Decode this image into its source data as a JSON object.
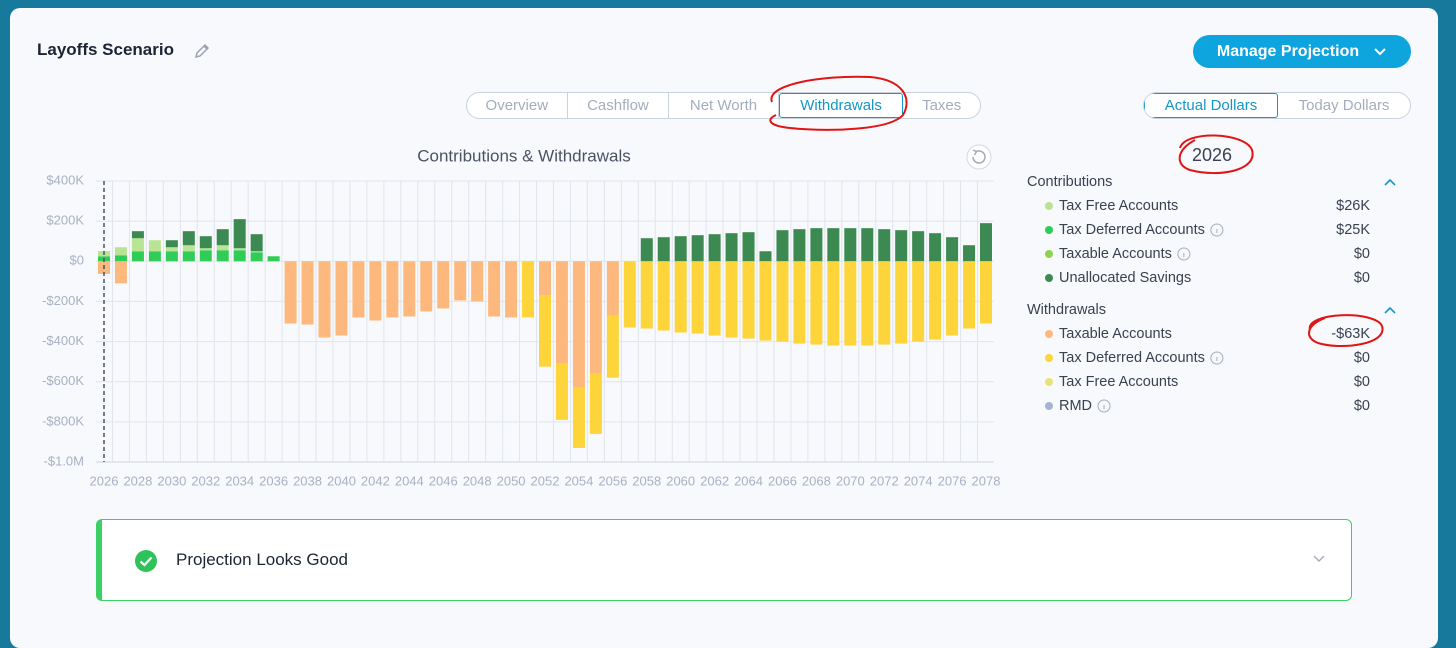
{
  "header": {
    "title": "Layoffs Scenario",
    "button": "Manage Projection"
  },
  "tabs": [
    "Overview",
    "Cashflow",
    "Net Worth",
    "Withdrawals",
    "Taxes"
  ],
  "toggle": [
    "Actual Dollars",
    "Today Dollars"
  ],
  "panel": {
    "year": "2026",
    "contributions": {
      "title": "Contributions",
      "values": [
        "$26K",
        "$25K",
        "$0",
        "$0"
      ]
    },
    "withdrawals": {
      "title": "Withdrawals",
      "values": [
        "-$63K",
        "$0",
        "$0",
        "$0"
      ]
    }
  },
  "status": "Projection Looks Good",
  "chart_data": {
    "type": "bar",
    "title": "Contributions & Withdrawals",
    "categories": [
      "2026",
      null,
      "2028",
      null,
      "2030",
      null,
      "2032",
      null,
      "2034",
      null,
      "2036",
      null,
      "2038",
      null,
      "2040",
      null,
      "2042",
      null,
      "2044",
      null,
      "2046",
      null,
      "2048",
      null,
      "2050",
      null,
      "2052",
      null,
      "2054",
      null,
      "2056",
      null,
      "2058",
      null,
      "2060",
      null,
      "2062",
      null,
      "2064",
      null,
      "2066",
      null,
      "2068",
      null,
      "2070",
      null,
      "2072",
      null,
      "2074",
      null,
      "2076",
      null,
      "2078"
    ],
    "ylim": [
      -1000,
      400
    ],
    "yticks": [
      {
        "value": 400,
        "label": "$400K"
      },
      {
        "value": 200,
        "label": "$200K"
      },
      {
        "value": 0,
        "label": "$0"
      },
      {
        "value": -200,
        "label": "-$200K"
      },
      {
        "value": -400,
        "label": "-$400K"
      },
      {
        "value": -600,
        "label": "-$600K"
      },
      {
        "value": -800,
        "label": "-$800K"
      },
      {
        "value": -1000,
        "label": "-$1.0M"
      }
    ],
    "grid": true,
    "stacked": true,
    "series": [
      {
        "name": "Tax Deferred Accounts",
        "color": "#2fcc58",
        "values": [
          25,
          30,
          50,
          50,
          50,
          50,
          55,
          55,
          55,
          45,
          25,
          0,
          0,
          0,
          0,
          0,
          0,
          0,
          0,
          0,
          0,
          0,
          0,
          0,
          0,
          0,
          0,
          0,
          0,
          0,
          0,
          0,
          0,
          0,
          0,
          0,
          0,
          0,
          0,
          0,
          0,
          0,
          0,
          0,
          0,
          0,
          0,
          0,
          0,
          0,
          0,
          0,
          0
        ]
      },
      {
        "name": "Tax Free Accounts",
        "color": "#b9e493",
        "values": [
          26,
          40,
          65,
          55,
          20,
          30,
          10,
          25,
          10,
          5,
          0,
          0,
          0,
          0,
          0,
          0,
          0,
          0,
          0,
          0,
          0,
          0,
          0,
          0,
          0,
          0,
          0,
          0,
          0,
          0,
          0,
          0,
          0,
          0,
          0,
          0,
          0,
          0,
          0,
          0,
          0,
          0,
          0,
          0,
          0,
          0,
          0,
          0,
          0,
          0,
          0,
          0,
          0
        ]
      },
      {
        "name": "Taxable Accounts",
        "color": "#8fd24f",
        "values": [
          0,
          0,
          0,
          0,
          0,
          0,
          0,
          0,
          0,
          0,
          0,
          0,
          0,
          0,
          0,
          0,
          0,
          0,
          0,
          0,
          0,
          0,
          0,
          0,
          0,
          0,
          0,
          0,
          0,
          0,
          0,
          0,
          0,
          0,
          0,
          0,
          0,
          0,
          0,
          0,
          0,
          0,
          0,
          0,
          0,
          0,
          0,
          0,
          0,
          0,
          0,
          0,
          0
        ]
      },
      {
        "name": "Unallocated Savings",
        "color": "#3c8a52",
        "values": [
          0,
          0,
          35,
          0,
          35,
          70,
          60,
          80,
          145,
          85,
          0,
          0,
          0,
          0,
          0,
          0,
          0,
          0,
          0,
          0,
          0,
          0,
          0,
          0,
          0,
          0,
          0,
          0,
          0,
          0,
          0,
          0,
          115,
          120,
          125,
          130,
          135,
          140,
          145,
          50,
          155,
          160,
          165,
          165,
          165,
          165,
          160,
          155,
          150,
          140,
          120,
          80,
          190
        ]
      },
      {
        "name": "Taxable Accounts",
        "color": "#fdb97d",
        "values": [
          -63,
          -110,
          0,
          0,
          0,
          0,
          0,
          0,
          0,
          0,
          0,
          -310,
          -315,
          -380,
          -370,
          -280,
          -295,
          -280,
          -275,
          -250,
          -235,
          -195,
          -200,
          -275,
          -280,
          0,
          -170,
          -510,
          -630,
          -560,
          -270,
          0,
          0,
          0,
          0,
          0,
          0,
          0,
          0,
          0,
          0,
          0,
          0,
          0,
          0,
          0,
          0,
          0,
          0,
          0,
          0,
          0,
          0
        ]
      },
      {
        "name": "Tax Deferred Accounts",
        "color": "#fdd43a",
        "values": [
          0,
          0,
          0,
          0,
          0,
          0,
          0,
          0,
          0,
          0,
          0,
          0,
          0,
          0,
          0,
          0,
          0,
          0,
          0,
          0,
          0,
          0,
          0,
          0,
          0,
          -280,
          -355,
          -280,
          -300,
          -300,
          -310,
          -330,
          -335,
          -345,
          -355,
          -360,
          -370,
          -380,
          -385,
          -395,
          -400,
          -410,
          -415,
          -420,
          -420,
          -420,
          -415,
          -410,
          -400,
          -390,
          -370,
          -335,
          -310
        ]
      },
      {
        "name": "Tax Free Accounts",
        "color": "#e6e27a",
        "values": [
          0,
          0,
          0,
          0,
          0,
          0,
          0,
          0,
          0,
          0,
          0,
          0,
          0,
          0,
          0,
          0,
          0,
          0,
          0,
          0,
          0,
          0,
          0,
          0,
          0,
          0,
          0,
          0,
          0,
          0,
          0,
          0,
          0,
          0,
          0,
          0,
          0,
          0,
          0,
          0,
          0,
          0,
          0,
          0,
          0,
          0,
          0,
          0,
          0,
          0,
          0,
          0,
          0
        ]
      },
      {
        "name": "RMD",
        "color": "#a9b3cf",
        "values": [
          0,
          0,
          0,
          0,
          0,
          0,
          0,
          0,
          0,
          0,
          0,
          0,
          0,
          0,
          0,
          0,
          0,
          0,
          0,
          0,
          0,
          0,
          0,
          0,
          0,
          0,
          0,
          0,
          0,
          0,
          0,
          0,
          0,
          0,
          0,
          0,
          0,
          0,
          0,
          0,
          0,
          0,
          0,
          0,
          0,
          0,
          0,
          0,
          0,
          0,
          0,
          0,
          0
        ]
      }
    ]
  }
}
